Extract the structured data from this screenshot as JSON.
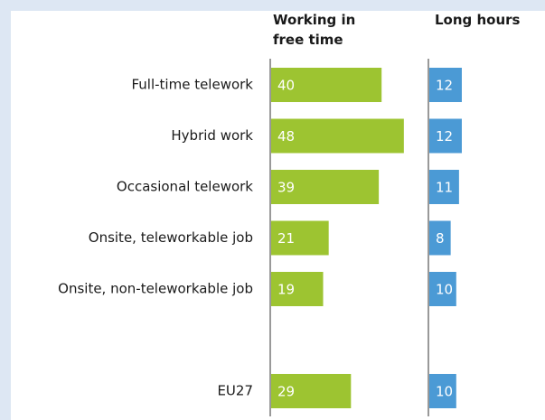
{
  "chart_data": {
    "type": "bar",
    "categories": [
      "Full-time telework",
      "Hybrid work",
      "Occasional telework",
      "Onsite, teleworkable job",
      "Onsite, non-teleworkable job",
      null,
      "EU27"
    ],
    "series": [
      {
        "name": "Working in free time",
        "color": "#9dc431",
        "values": [
          40,
          48,
          39,
          21,
          19,
          null,
          29
        ]
      },
      {
        "name": "Long hours",
        "color": "#4b9ad5",
        "values": [
          12,
          12,
          11,
          8,
          10,
          null,
          10
        ]
      }
    ],
    "xlim": [
      0,
      50
    ]
  }
}
